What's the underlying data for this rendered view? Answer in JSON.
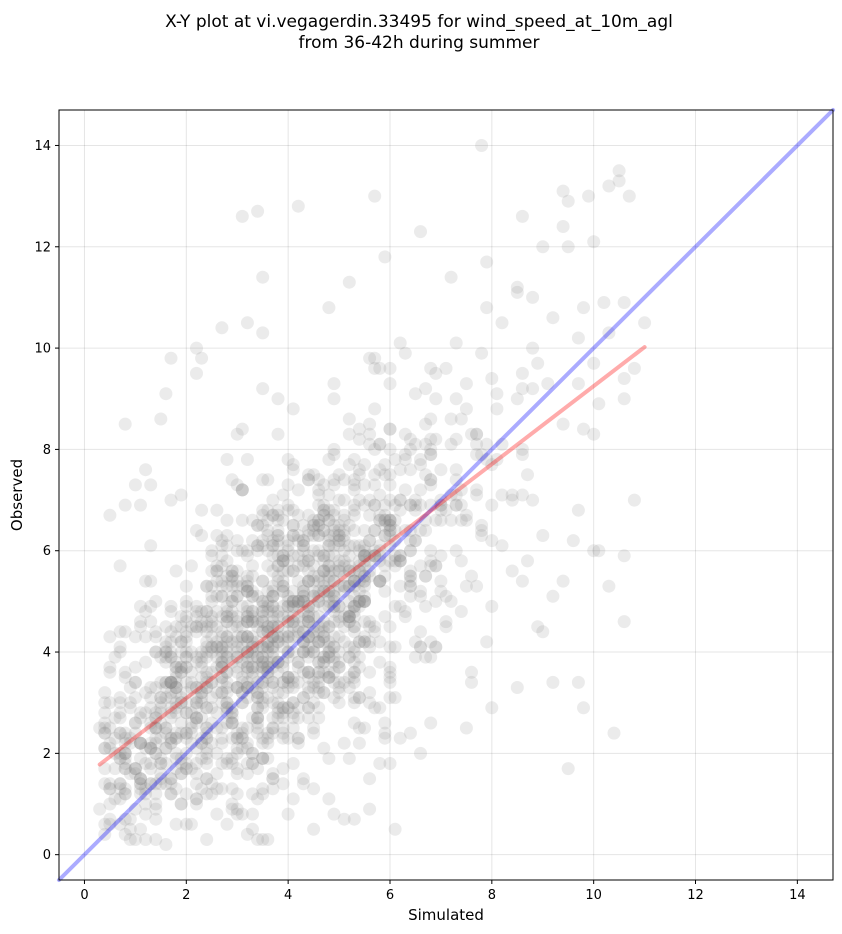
{
  "chart_data": {
    "type": "scatter",
    "title_line1": "X-Y plot at vi.vegagerdin.33495 for wind_speed_at_10m_agl",
    "title_line2": "from 36-42h during summer",
    "xlabel": "Simulated",
    "ylabel": "Observed",
    "xlim": [
      -0.5,
      14.7
    ],
    "ylim": [
      -0.5,
      14.7
    ],
    "xticks": [
      "0",
      "2",
      "4",
      "6",
      "8",
      "10",
      "12",
      "14"
    ],
    "yticks": [
      "0",
      "2",
      "4",
      "6",
      "8",
      "10",
      "12",
      "14"
    ],
    "grid": true,
    "point_color": "#808080",
    "identity_line": {
      "color": "#0000ff",
      "from": [
        -0.5,
        -0.5
      ],
      "to": [
        14.7,
        14.7
      ]
    },
    "fit_line": {
      "color": "#ff0000",
      "from": [
        0.3,
        1.78
      ],
      "to": [
        11.0,
        10.02
      ]
    },
    "outliers": [
      [
        7.8,
        14.0
      ],
      [
        5.7,
        13.0
      ],
      [
        3.1,
        12.6
      ],
      [
        3.4,
        12.7
      ],
      [
        6.6,
        12.3
      ],
      [
        8.6,
        12.6
      ],
      [
        10.5,
        13.5
      ],
      [
        10.3,
        13.2
      ],
      [
        10.5,
        13.3
      ],
      [
        9.4,
        13.1
      ],
      [
        9.5,
        12.9
      ],
      [
        9.9,
        13.0
      ],
      [
        10.7,
        13.0
      ],
      [
        9.0,
        12.0
      ],
      [
        9.5,
        12.0
      ],
      [
        10.0,
        12.1
      ],
      [
        9.4,
        12.4
      ],
      [
        3.5,
        11.4
      ],
      [
        5.2,
        11.3
      ],
      [
        7.2,
        11.4
      ],
      [
        7.9,
        11.7
      ],
      [
        8.5,
        11.2
      ],
      [
        8.8,
        11.0
      ],
      [
        9.8,
        10.8
      ],
      [
        10.2,
        10.9
      ],
      [
        10.6,
        10.9
      ],
      [
        11.0,
        10.5
      ],
      [
        9.7,
        10.2
      ],
      [
        10.3,
        10.3
      ],
      [
        9.2,
        10.6
      ],
      [
        8.2,
        10.5
      ],
      [
        1.7,
        9.8
      ],
      [
        1.6,
        9.1
      ],
      [
        3.2,
        10.5
      ],
      [
        3.5,
        10.3
      ],
      [
        2.7,
        10.4
      ],
      [
        4.8,
        10.8
      ],
      [
        5.7,
        9.8
      ],
      [
        10.0,
        9.7
      ],
      [
        10.6,
        9.4
      ],
      [
        10.8,
        9.6
      ],
      [
        9.7,
        9.3
      ],
      [
        10.6,
        9.0
      ],
      [
        8.5,
        9.0
      ],
      [
        9.1,
        9.3
      ],
      [
        8.6,
        9.5
      ],
      [
        1.0,
        7.3
      ],
      [
        0.8,
        8.5
      ],
      [
        1.5,
        8.6
      ],
      [
        1.2,
        7.6
      ],
      [
        0.5,
        6.7
      ],
      [
        0.8,
        6.9
      ],
      [
        1.1,
        6.9
      ],
      [
        3.0,
        8.3
      ],
      [
        3.5,
        9.2
      ],
      [
        3.8,
        9.0
      ],
      [
        10.1,
        6.0
      ],
      [
        10.6,
        5.9
      ],
      [
        10.8,
        7.0
      ],
      [
        10.3,
        5.3
      ],
      [
        10.6,
        4.6
      ],
      [
        10.4,
        2.4
      ],
      [
        9.8,
        2.9
      ],
      [
        9.7,
        3.4
      ],
      [
        9.5,
        1.7
      ],
      [
        9.2,
        3.4
      ],
      [
        8.5,
        3.3
      ],
      [
        7.9,
        4.2
      ],
      [
        8.0,
        2.9
      ],
      [
        7.5,
        2.5
      ],
      [
        8.9,
        4.5
      ],
      [
        9.0,
        4.4
      ],
      [
        6.1,
        0.5
      ],
      [
        5.1,
        0.7
      ],
      [
        5.3,
        0.7
      ],
      [
        3.6,
        0.3
      ],
      [
        3.4,
        0.3
      ],
      [
        1.6,
        0.2
      ],
      [
        0.9,
        0.5
      ],
      [
        0.4,
        0.6
      ],
      [
        0.3,
        0.9
      ],
      [
        0.4,
        0.4
      ],
      [
        5.6,
        0.9
      ],
      [
        6.0,
        1.8
      ],
      [
        6.2,
        2.3
      ],
      [
        6.6,
        2.0
      ],
      [
        6.4,
        2.4
      ],
      [
        7.1,
        4.5
      ],
      [
        7.6,
        3.6
      ],
      [
        7.6,
        3.4
      ],
      [
        9.2,
        5.1
      ],
      [
        9.4,
        5.4
      ],
      [
        8.4,
        5.6
      ],
      [
        8.6,
        5.4
      ],
      [
        9.0,
        6.3
      ],
      [
        9.6,
        6.2
      ],
      [
        10.0,
        8.3
      ],
      [
        9.4,
        8.5
      ],
      [
        9.8,
        8.4
      ],
      [
        10.0,
        6.0
      ],
      [
        4.8,
        1.1
      ],
      [
        4.5,
        0.5
      ],
      [
        5.6,
        1.5
      ],
      [
        5.8,
        1.8
      ],
      [
        2.2,
        10.0
      ],
      [
        2.2,
        9.5
      ],
      [
        2.3,
        9.8
      ],
      [
        4.2,
        12.8
      ],
      [
        5.9,
        11.8
      ],
      [
        6.3,
        9.9
      ]
    ],
    "cluster_center": [
      3.6,
      4.1
    ]
  }
}
